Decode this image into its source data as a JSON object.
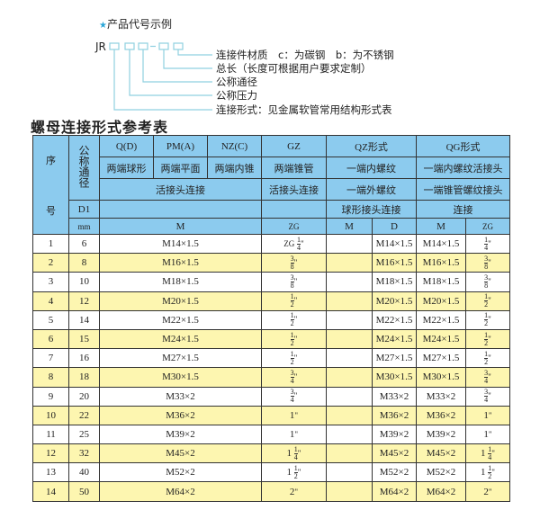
{
  "header": {
    "title": "产品代号示例",
    "star_icon": "star-icon",
    "code_prefix": "JR",
    "code_dash": "-",
    "labels": [
      "连接件材质　c：为碳钢　b：为不锈钢",
      "总长（长度可根据用户要求定制）",
      "公称通径",
      "公称压力",
      "连接形式：见金属软管常用结构形式表"
    ]
  },
  "section_title": "螺母连接形式参考表",
  "table": {
    "h_seq": [
      "序",
      "号"
    ],
    "h_dn": "公称通径",
    "row1": [
      "Q(D)",
      "PM(A)",
      "NZ(C)",
      "GZ",
      "QZ形式",
      "QG形式"
    ],
    "row2": [
      "两端球形",
      "两端平面",
      "两端内锥",
      "两端锥管",
      "一端内螺纹",
      "一端内螺纹活接头"
    ],
    "row3": [
      "活接头连接",
      "活接头连接",
      "一端外螺纹",
      "一端锥管螺纹接头"
    ],
    "row4": [
      "D1",
      "球形接头连接",
      "连接"
    ],
    "row5": [
      "mm",
      "M",
      "ZG",
      "M",
      "D",
      "M",
      "ZG"
    ],
    "rows": [
      {
        "no": "1",
        "d1": "6",
        "m": "M14×1.5",
        "gz": {
          "pre": "ZG",
          "whole": "",
          "num": "1",
          "den": "4"
        },
        "qzd": "M14×1.5",
        "qgm": "M14×1.5",
        "qgzg": {
          "whole": "",
          "num": "1",
          "den": "4"
        }
      },
      {
        "no": "2",
        "d1": "8",
        "m": "M16×1.5",
        "gz": {
          "whole": "",
          "num": "3",
          "den": "8"
        },
        "qzd": "M16×1.5",
        "qgm": "M16×1.5",
        "qgzg": {
          "whole": "",
          "num": "3",
          "den": "8"
        }
      },
      {
        "no": "3",
        "d1": "10",
        "m": "M18×1.5",
        "gz": {
          "whole": "",
          "num": "3",
          "den": "8"
        },
        "qzd": "M18×1.5",
        "qgm": "M18×1.5",
        "qgzg": {
          "whole": "",
          "num": "3",
          "den": "8"
        }
      },
      {
        "no": "4",
        "d1": "12",
        "m": "M20×1.5",
        "gz": {
          "whole": "",
          "num": "1",
          "den": "2"
        },
        "qzd": "M20×1.5",
        "qgm": "M20×1.5",
        "qgzg": {
          "whole": "",
          "num": "1",
          "den": "2"
        }
      },
      {
        "no": "5",
        "d1": "14",
        "m": "M22×1.5",
        "gz": {
          "whole": "",
          "num": "1",
          "den": "2"
        },
        "qzd": "M22×1.5",
        "qgm": "M22×1.5",
        "qgzg": {
          "whole": "",
          "num": "1",
          "den": "2"
        }
      },
      {
        "no": "6",
        "d1": "15",
        "m": "M24×1.5",
        "gz": {
          "whole": "",
          "num": "1",
          "den": "2"
        },
        "qzd": "M24×1.5",
        "qgm": "M24×1.5",
        "qgzg": {
          "whole": "",
          "num": "1",
          "den": "2"
        }
      },
      {
        "no": "7",
        "d1": "16",
        "m": "M27×1.5",
        "gz": {
          "whole": "",
          "num": "1",
          "den": "2"
        },
        "qzd": "M27×1.5",
        "qgm": "M27×1.5",
        "qgzg": {
          "whole": "",
          "num": "1",
          "den": "2"
        }
      },
      {
        "no": "8",
        "d1": "18",
        "m": "M30×1.5",
        "gz": {
          "whole": "",
          "num": "3",
          "den": "4"
        },
        "qzd": "M30×1.5",
        "qgm": "M30×1.5",
        "qgzg": {
          "whole": "",
          "num": "3",
          "den": "4"
        }
      },
      {
        "no": "9",
        "d1": "20",
        "m": "M33×2",
        "gz": {
          "whole": "",
          "num": "3",
          "den": "4"
        },
        "qzd": "M33×2",
        "qgm": "M33×2",
        "qgzg": {
          "whole": "",
          "num": "3",
          "den": "4"
        }
      },
      {
        "no": "10",
        "d1": "22",
        "m": "M36×2",
        "gz": {
          "whole": "1"
        },
        "qzd": "M36×2",
        "qgm": "M36×2",
        "qgzg": {
          "whole": "1"
        }
      },
      {
        "no": "11",
        "d1": "25",
        "m": "M39×2",
        "gz": {
          "whole": "1"
        },
        "qzd": "M39×2",
        "qgm": "M39×2",
        "qgzg": {
          "whole": "1"
        }
      },
      {
        "no": "12",
        "d1": "32",
        "m": "M45×2",
        "gz": {
          "whole": "1",
          "num": "1",
          "den": "4"
        },
        "qzd": "M45×2",
        "qgm": "M45×2",
        "qgzg": {
          "whole": "1",
          "num": "1",
          "den": "4"
        }
      },
      {
        "no": "13",
        "d1": "40",
        "m": "M52×2",
        "gz": {
          "whole": "1",
          "num": "1",
          "den": "2"
        },
        "qzd": "M52×2",
        "qgm": "M52×2",
        "qgzg": {
          "whole": "1",
          "num": "1",
          "den": "2"
        }
      },
      {
        "no": "14",
        "d1": "50",
        "m": "M64×2",
        "gz": {
          "whole": "2"
        },
        "qzd": "M64×2",
        "qgm": "M64×2",
        "qgzg": {
          "whole": "2"
        }
      }
    ]
  },
  "colors": {
    "header_bg": "#8ccbee",
    "alt_row_bg": "#fdf6b0",
    "line": "#8fd0e0",
    "star": "#2aa6d8"
  }
}
